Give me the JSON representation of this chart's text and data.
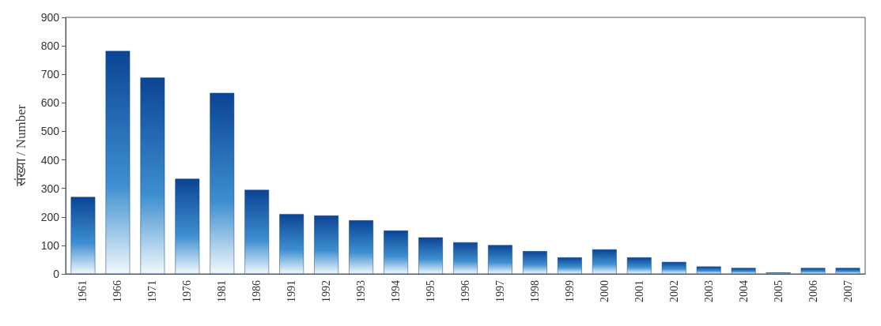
{
  "chart_data": {
    "type": "bar",
    "ylabel": "संख्या / Number",
    "categories": [
      "1961",
      "1966",
      "1971",
      "1976",
      "1981",
      "1986",
      "1991",
      "1992",
      "1993",
      "1994",
      "1995",
      "1996",
      "1997",
      "1998",
      "1999",
      "2000",
      "2001",
      "2002",
      "2003",
      "2004",
      "2005",
      "2006",
      "2007"
    ],
    "values": [
      270,
      782,
      689,
      334,
      635,
      295,
      210,
      205,
      188,
      152,
      128,
      111,
      101,
      80,
      58,
      86,
      58,
      42,
      26,
      21,
      5,
      21,
      21
    ],
    "color": "#0b4494",
    "ylim": [
      0,
      900
    ],
    "yticks": [
      0,
      100,
      200,
      300,
      400,
      500,
      600,
      700,
      800,
      900
    ],
    "grid": false
  }
}
